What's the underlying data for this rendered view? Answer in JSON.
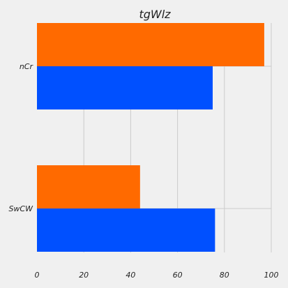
{
  "chart_data": {
    "type": "bar",
    "orientation": "horizontal",
    "title": "tgWlz",
    "xlabel": "",
    "ylabel": "",
    "categories": [
      "nCr",
      "SwCW"
    ],
    "series": [
      {
        "values": [
          97,
          44
        ],
        "color": "#ff6a00"
      },
      {
        "values": [
          75,
          76
        ],
        "color": "#0050ff"
      }
    ],
    "xlim": [
      0,
      100
    ],
    "xticks": [
      0,
      20,
      40,
      60,
      80,
      100
    ],
    "grid": true,
    "legend": false
  }
}
